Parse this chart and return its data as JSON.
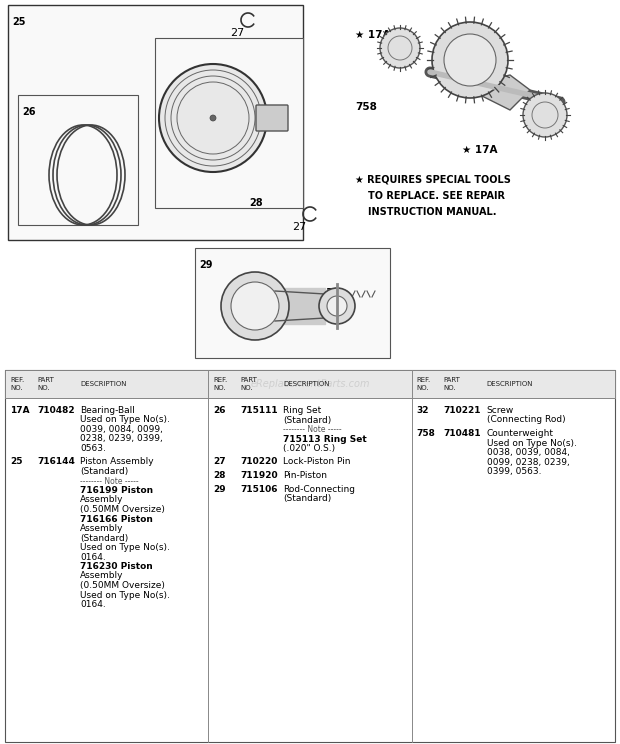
{
  "bg_color": "#ffffff",
  "watermark": "eReplacementParts.com",
  "col1_parts": [
    {
      "ref": "17A",
      "part": "710482",
      "desc_lines": [
        [
          "Bearing-Ball",
          false
        ],
        [
          "Used on Type No(s).",
          false
        ],
        [
          "0039, 0084, 0099,",
          false
        ],
        [
          "0238, 0239, 0399,",
          false
        ],
        [
          "0563.",
          false
        ]
      ]
    },
    {
      "ref": "25",
      "part": "716144",
      "desc_lines": [
        [
          "Piston Assembly",
          false
        ],
        [
          "(Standard)",
          false
        ],
        [
          "-------- Note -----",
          "note"
        ],
        [
          "716199 Piston",
          true
        ],
        [
          "Assembly",
          false
        ],
        [
          "(0.50MM Oversize)",
          false
        ],
        [
          "716166 Piston",
          true
        ],
        [
          "Assembly",
          false
        ],
        [
          "(Standard)",
          false
        ],
        [
          "Used on Type No(s).",
          false
        ],
        [
          "0164.",
          false
        ],
        [
          "716230 Piston",
          true
        ],
        [
          "Assembly",
          false
        ],
        [
          "(0.50MM Oversize)",
          false
        ],
        [
          "Used on Type No(s).",
          false
        ],
        [
          "0164.",
          false
        ]
      ]
    }
  ],
  "col2_parts": [
    {
      "ref": "26",
      "part": "715111",
      "desc_lines": [
        [
          "Ring Set",
          false
        ],
        [
          "(Standard)",
          false
        ],
        [
          "-------- Note -----",
          "note"
        ],
        [
          "715113 Ring Set",
          true
        ],
        [
          "(.020\" O.S.)",
          false
        ]
      ]
    },
    {
      "ref": "27",
      "part": "710220",
      "desc_lines": [
        [
          "Lock-Piston Pin",
          false
        ]
      ]
    },
    {
      "ref": "28",
      "part": "711920",
      "desc_lines": [
        [
          "Pin-Piston",
          false
        ]
      ]
    },
    {
      "ref": "29",
      "part": "715106",
      "desc_lines": [
        [
          "Rod-Connecting",
          false
        ],
        [
          "(Standard)",
          false
        ]
      ]
    }
  ],
  "col3_parts": [
    {
      "ref": "32",
      "part": "710221",
      "desc_lines": [
        [
          "Screw",
          false
        ],
        [
          "(Connecting Rod)",
          false
        ]
      ]
    },
    {
      "ref": "758",
      "part": "710481",
      "desc_lines": [
        [
          "Counterweight",
          false
        ],
        [
          "Used on Type No(s).",
          false
        ],
        [
          "0038, 0039, 0084,",
          false
        ],
        [
          "0099, 0238, 0239,",
          false
        ],
        [
          "0399, 0563.",
          false
        ]
      ]
    }
  ]
}
